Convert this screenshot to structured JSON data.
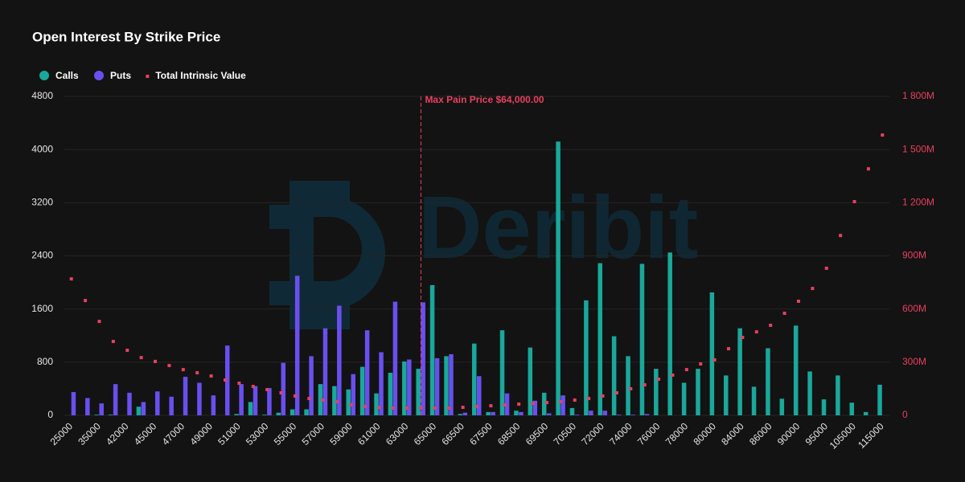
{
  "chart_data": {
    "type": "bar",
    "title": "Open Interest By Strike Price",
    "watermark": "Deribit",
    "categories": [
      "25000",
      null,
      "35000",
      null,
      "42000",
      null,
      "45000",
      null,
      "47000",
      null,
      "49000",
      null,
      "51000",
      null,
      "53000",
      null,
      "55000",
      null,
      "57000",
      null,
      "59000",
      null,
      "61000",
      null,
      "63000",
      null,
      "65000",
      null,
      "66500",
      null,
      "67500",
      null,
      "68500",
      null,
      "69500",
      null,
      "70500",
      null,
      "72000",
      null,
      "74000",
      null,
      "76000",
      null,
      "78000",
      null,
      "80000",
      null,
      "84000",
      null,
      "86000",
      null,
      "90000",
      null,
      "95000",
      null,
      "105000",
      null,
      "115000"
    ],
    "series": [
      {
        "name": "Calls",
        "color": "#19a89b",
        "type": "bar",
        "values": [
          0,
          0,
          10,
          10,
          0,
          130,
          0,
          0,
          0,
          0,
          0,
          0,
          20,
          200,
          10,
          40,
          90,
          90,
          470,
          440,
          390,
          730,
          330,
          640,
          810,
          700,
          1960,
          890,
          20,
          1080,
          50,
          1280,
          70,
          1020,
          340,
          4120,
          110,
          1730,
          2290,
          1190,
          890,
          2280,
          700,
          2450,
          490,
          700,
          1850,
          600,
          1310,
          430,
          1010,
          250,
          1350,
          660,
          240,
          600,
          190,
          50,
          460
        ]
      },
      {
        "name": "Puts",
        "color": "#6a4ff0",
        "type": "bar",
        "values": [
          350,
          260,
          180,
          470,
          340,
          200,
          360,
          280,
          580,
          490,
          300,
          1050,
          470,
          440,
          410,
          790,
          2100,
          890,
          1310,
          1650,
          620,
          1280,
          950,
          1710,
          840,
          1700,
          860,
          920,
          40,
          590,
          50,
          330,
          50,
          220,
          30,
          300,
          10,
          70,
          70,
          10,
          10,
          20,
          0,
          0,
          0,
          0,
          0,
          0,
          0,
          0,
          0,
          0,
          0,
          0,
          0,
          0,
          0,
          0,
          0
        ]
      },
      {
        "name": "Total Intrinsic Value",
        "color": "#e8405f",
        "type": "scatter",
        "axis": "y2",
        "values": [
          770,
          648,
          530,
          417,
          367,
          326,
          304,
          281,
          258,
          240,
          222,
          199,
          181,
          163,
          145,
          127,
          109,
          95,
          86,
          77,
          59,
          50,
          45,
          41,
          41,
          41,
          41,
          41,
          45,
          50,
          54,
          59,
          63,
          68,
          72,
          77,
          86,
          95,
          109,
          127,
          150,
          172,
          204,
          227,
          258,
          290,
          313,
          376,
          440,
          471,
          508,
          576,
          644,
          716,
          830,
          1015,
          1206,
          1391,
          1582
        ]
      }
    ],
    "ylim": [
      0,
      4800
    ],
    "yticks": [
      0,
      800,
      1600,
      2400,
      3200,
      4000,
      4800
    ],
    "y2lim": [
      0,
      1800
    ],
    "y2ticks": [
      0,
      {
        "value": 300,
        "label": "300M"
      },
      {
        "value": 600,
        "label": "600M"
      },
      {
        "value": 900,
        "label": "900M"
      },
      {
        "value": 1200,
        "label": "1 200M"
      },
      {
        "value": 1500,
        "label": "1 500M"
      },
      {
        "value": 1800,
        "label": "1 800M"
      }
    ],
    "max_pain": {
      "value": 64000,
      "label": "Max Pain Price $64,000.00"
    },
    "grid": true,
    "legend": "top-left"
  }
}
